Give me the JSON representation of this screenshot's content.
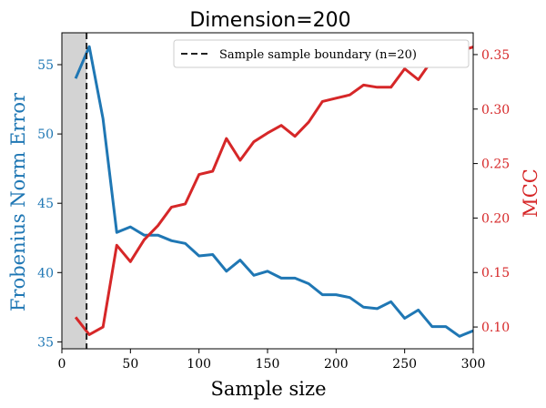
{
  "chart_data": {
    "type": "line",
    "title": "Dimension=200",
    "xlabel": "Sample size",
    "xlim": [
      0,
      300
    ],
    "x_ticks": [
      0,
      50,
      100,
      150,
      200,
      250,
      300
    ],
    "y_left": {
      "label": "Frobenius Norm Error",
      "color": "#1f77b4",
      "lim": [
        34.5,
        57.3
      ],
      "ticks": [
        35,
        40,
        45,
        50,
        55
      ]
    },
    "y_right": {
      "label": "MCC",
      "color": "#d62728",
      "lim": [
        0.08,
        0.37
      ],
      "ticks": [
        0.1,
        0.15,
        0.2,
        0.25,
        0.3,
        0.35
      ]
    },
    "shaded_region": {
      "x_start": 0,
      "x_end": 18,
      "color": "#d3d3d3"
    },
    "boundary": {
      "x": 18,
      "legend_label": "Sample sample boundary (n=20)"
    },
    "grid": false,
    "legend_position": "top-right",
    "series": [
      {
        "axis": "left",
        "color": "#1f77b4",
        "x": [
          10,
          20,
          30,
          40,
          50,
          60,
          70,
          80,
          90,
          100,
          110,
          120,
          130,
          140,
          150,
          160,
          170,
          180,
          190,
          200,
          210,
          220,
          230,
          240,
          250,
          260,
          270,
          280,
          290,
          300
        ],
        "values": [
          54.0,
          56.3,
          51.1,
          42.9,
          43.3,
          42.7,
          42.7,
          42.3,
          42.1,
          41.2,
          41.3,
          40.1,
          40.9,
          39.8,
          40.1,
          39.6,
          39.6,
          39.2,
          38.4,
          38.4,
          38.2,
          37.5,
          37.4,
          37.9,
          36.7,
          37.3,
          36.1,
          36.1,
          35.4,
          35.8
        ]
      },
      {
        "axis": "right",
        "color": "#d62728",
        "x": [
          10,
          20,
          30,
          40,
          50,
          60,
          70,
          80,
          90,
          100,
          110,
          120,
          130,
          140,
          150,
          160,
          170,
          180,
          190,
          200,
          210,
          220,
          230,
          240,
          250,
          260,
          270,
          280,
          290,
          300
        ],
        "values": [
          0.109,
          0.093,
          0.1,
          0.175,
          0.16,
          0.18,
          0.193,
          0.21,
          0.213,
          0.24,
          0.243,
          0.273,
          0.253,
          0.27,
          0.278,
          0.285,
          0.275,
          0.288,
          0.307,
          0.31,
          0.313,
          0.322,
          0.32,
          0.32,
          0.337,
          0.327,
          0.345,
          0.343,
          0.353,
          0.357
        ]
      }
    ]
  }
}
